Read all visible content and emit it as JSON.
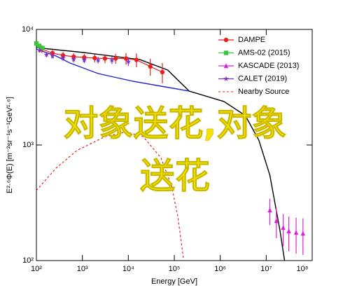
{
  "chart_data": {
    "type": "scatter",
    "xlabel": "Energy [GeV]",
    "ylabel": "E²·⁶Φ(E) [m⁻²sr⁻¹s⁻¹GeV¹·⁶]",
    "log_x": true,
    "log_y": true,
    "xlim": [
      100,
      100000000
    ],
    "ylim": [
      100,
      10000
    ],
    "xticks": [
      {
        "value": 100,
        "label": "10²"
      },
      {
        "value": 1000,
        "label": "10³"
      },
      {
        "value": 10000,
        "label": "10⁴"
      },
      {
        "value": 100000,
        "label": "10⁵"
      },
      {
        "value": 1000000,
        "label": "10⁶"
      },
      {
        "value": 10000000,
        "label": "10⁷"
      },
      {
        "value": 100000000,
        "label": "10⁸"
      }
    ],
    "yticks": [
      {
        "value": 100,
        "label": "10²"
      },
      {
        "value": 1000,
        "label": "10³"
      },
      {
        "value": 10000,
        "label": "10⁴"
      }
    ],
    "legend": "upper right",
    "series": [
      {
        "name": "DAMPE",
        "color": "#e8201e",
        "marker": "circle",
        "x": [
          132,
          224,
          380,
          646,
          1100,
          1860,
          3100,
          5300,
          8900,
          15000,
          30000,
          55000
        ],
        "values": [
          6760,
          6230,
          5970,
          5800,
          5720,
          5650,
          5600,
          5600,
          5600,
          5450,
          4780,
          4270
        ],
        "errors": [
          500,
          450,
          420,
          420,
          420,
          450,
          500,
          550,
          650,
          750,
          800,
          850
        ]
      },
      {
        "name": "AMS-02 (2015)",
        "color": "#3cc43c",
        "marker": "square",
        "x": [
          100,
          115,
          135
        ],
        "values": [
          7560,
          7200,
          6900
        ]
      },
      {
        "name": "KASCADE (2013)",
        "color": "#e020d8",
        "marker": "triangle",
        "x": [
          12000000,
          16600000,
          23400000,
          31000000,
          44700000,
          63000000
        ],
        "values": [
          273,
          221,
          193,
          180,
          175,
          172
        ],
        "errors": [
          70,
          65,
          60,
          60,
          60,
          60
        ]
      },
      {
        "name": "CALET (2019)",
        "color": "#7a2fd0",
        "marker": "star",
        "x": [
          117,
          166,
          224,
          380,
          646,
          1100,
          2200,
          4400,
          10000
        ],
        "values": [
          6600,
          6050,
          5890,
          5650,
          5500,
          5420,
          5420,
          5420,
          5270
        ],
        "errors": [
          300,
          300,
          300,
          300,
          300,
          320,
          350,
          400,
          450
        ]
      },
      {
        "name": "Nearby Source",
        "color": "#e8201e",
        "line": "dashed",
        "x": [
          100,
          266,
          760,
          3100,
          8900,
          21000,
          51000,
          87000,
          120000,
          160000
        ],
        "values": [
          404,
          630,
          895,
          1180,
          1300,
          1180,
          778,
          445,
          238,
          100
        ]
      }
    ],
    "curves": [
      {
        "color": "#000000",
        "x": [
          100,
          1080,
          17800,
          72000,
          210000,
          1200000,
          3500000,
          6900000,
          12000000,
          20000000,
          25000000
        ],
        "values": [
          6950,
          6310,
          5480,
          4450,
          2930,
          2380,
          1800,
          1100,
          548,
          180,
          100
        ]
      },
      {
        "color": "#2020c8",
        "x": [
          100,
          266,
          540,
          2200,
          12600,
          51000,
          210000
        ],
        "values": [
          6760,
          5890,
          5120,
          4150,
          3560,
          3230,
          2930
        ]
      }
    ],
    "annotations": [
      "对象送花,对象",
      "送花"
    ]
  }
}
